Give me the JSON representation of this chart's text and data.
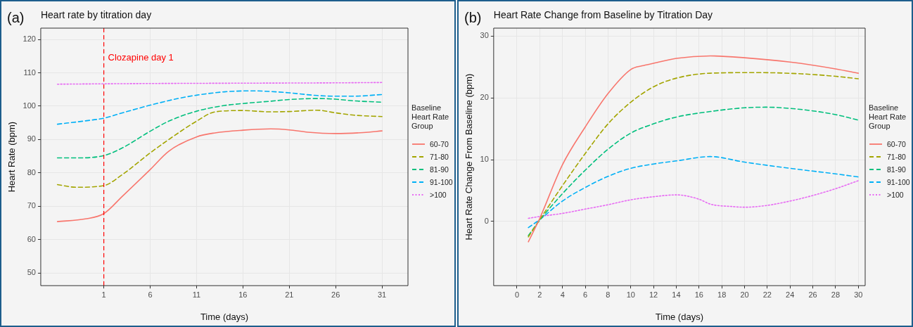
{
  "chart_data": [
    {
      "type": "line",
      "title": "Heart rate by titration day",
      "xlabel": "Time (days)",
      "ylabel": "Heart Rate (bpm)",
      "legend_title": "Baseline Heart Rate Group",
      "legend": "right",
      "grid": true,
      "xlim": [
        -5.8,
        33.8
      ],
      "xticks": [
        1,
        6,
        11,
        16,
        21,
        26,
        31
      ],
      "ylim": [
        46.2,
        123.4
      ],
      "yticks": [
        50,
        60,
        70,
        80,
        90,
        100,
        110,
        120
      ],
      "annotations": [
        "(a)"
      ],
      "ref_lines": [
        {
          "axis": "x",
          "value": 1,
          "label": "Clozapine day 1",
          "color": "#ff0000",
          "line_style": "dashed"
        }
      ],
      "series": [
        {
          "name": "60-70",
          "color": "#f8766d",
          "line_style": "solid",
          "x": [
            -4,
            -1,
            1,
            3,
            6,
            8,
            11,
            13,
            16,
            19,
            21,
            23,
            26,
            29,
            31
          ],
          "values": [
            65.4,
            66.2,
            67.8,
            73,
            81,
            86.5,
            90.8,
            92,
            92.8,
            93.2,
            92.9,
            92.2,
            91.8,
            92.1,
            92.6
          ]
        },
        {
          "name": "71-80",
          "color": "#a3a500",
          "line_style": "dashed",
          "x": [
            -4,
            -2,
            1,
            3,
            6,
            8,
            11,
            13,
            16,
            19,
            21,
            24,
            26,
            28,
            31
          ],
          "values": [
            76.5,
            75.7,
            76.2,
            79.5,
            86,
            90,
            95.5,
            98.3,
            98.7,
            98.3,
            98.4,
            98.8,
            98,
            97.3,
            96.9
          ]
        },
        {
          "name": "81-90",
          "color": "#00bf7d",
          "line_style": "dashed",
          "x": [
            -4,
            -2,
            1,
            3,
            6,
            8,
            11,
            14,
            16,
            19,
            21,
            24,
            26,
            28,
            31
          ],
          "values": [
            84.5,
            84.5,
            85.2,
            87.5,
            92.5,
            95.5,
            98.5,
            100.2,
            100.8,
            101.5,
            102,
            102.3,
            102.1,
            101.6,
            101.2
          ]
        },
        {
          "name": "91-100",
          "color": "#00b0f6",
          "line_style": "dashed",
          "x": [
            -4,
            -1,
            1,
            3,
            6,
            9,
            11,
            14,
            17,
            19,
            21,
            24,
            26,
            28,
            31
          ],
          "values": [
            94.6,
            95.6,
            96.4,
            98,
            100.3,
            102.3,
            103.3,
            104.3,
            104.6,
            104.4,
            104,
            103.2,
            103,
            103,
            103.5
          ]
        },
        {
          "name": ">100",
          "color": "#e76bf3",
          "line_style": "dotted",
          "x": [
            -4,
            6,
            16,
            26,
            31
          ],
          "values": [
            106.6,
            106.8,
            106.9,
            107,
            107.1
          ]
        }
      ]
    },
    {
      "type": "line",
      "title": "Heart Rate Change from Baseline by Titration Day",
      "xlabel": "Time (days)",
      "ylabel": "Heart Rate Change From Baseline (bpm)",
      "legend_title": "Baseline Heart Rate Group",
      "legend": "right",
      "grid": true,
      "xlim": [
        -2.05,
        30.6
      ],
      "xticks": [
        0,
        2,
        4,
        6,
        8,
        10,
        12,
        14,
        16,
        18,
        20,
        22,
        24,
        26,
        28,
        30
      ],
      "ylim": [
        -10.4,
        31.3
      ],
      "yticks": [
        0,
        10,
        20,
        30
      ],
      "annotations": [
        "(b)"
      ],
      "series": [
        {
          "name": "60-70",
          "color": "#f8766d",
          "line_style": "solid",
          "x": [
            1,
            2,
            4,
            6,
            8,
            10,
            11,
            12,
            14,
            17,
            20,
            24,
            28,
            30
          ],
          "values": [
            -3.3,
            0.5,
            9.2,
            15.3,
            20.7,
            24.6,
            25.2,
            25.6,
            26.4,
            26.8,
            26.5,
            25.8,
            24.7,
            24
          ]
        },
        {
          "name": "71-80",
          "color": "#a3a500",
          "line_style": "dashed",
          "x": [
            1,
            2,
            4,
            6,
            8,
            10,
            12,
            14,
            17,
            21,
            25,
            28,
            30
          ],
          "values": [
            -2.5,
            0.3,
            5.8,
            11,
            15.8,
            19.3,
            21.8,
            23.2,
            24,
            24.1,
            23.9,
            23.5,
            23.1
          ]
        },
        {
          "name": "81-90",
          "color": "#00bf7d",
          "line_style": "dashed",
          "x": [
            1,
            2,
            4,
            6,
            8,
            10,
            12,
            14,
            17,
            20,
            22,
            24,
            26,
            28,
            30
          ],
          "values": [
            -2.3,
            0.2,
            4.5,
            8.3,
            11.7,
            14.3,
            15.8,
            16.9,
            17.8,
            18.4,
            18.5,
            18.3,
            17.9,
            17.3,
            16.4
          ]
        },
        {
          "name": "91-100",
          "color": "#00b0f6",
          "line_style": "dashed",
          "x": [
            1,
            2,
            4,
            6,
            8,
            10,
            12,
            14,
            17,
            20,
            24,
            28,
            30
          ],
          "values": [
            -1,
            0.3,
            3.3,
            5.5,
            7.3,
            8.6,
            9.3,
            9.8,
            10.5,
            9.6,
            8.6,
            7.7,
            7.2
          ]
        },
        {
          "name": ">100",
          "color": "#e76bf3",
          "line_style": "dotted",
          "x": [
            1,
            2,
            4,
            6,
            8,
            10,
            12,
            14,
            16,
            17,
            19,
            20,
            22,
            24,
            26,
            28,
            30
          ],
          "values": [
            0.5,
            0.8,
            1.3,
            2,
            2.7,
            3.5,
            4,
            4.3,
            3.6,
            2.8,
            2.4,
            2.3,
            2.6,
            3.3,
            4.2,
            5.3,
            6.6
          ]
        }
      ]
    }
  ]
}
